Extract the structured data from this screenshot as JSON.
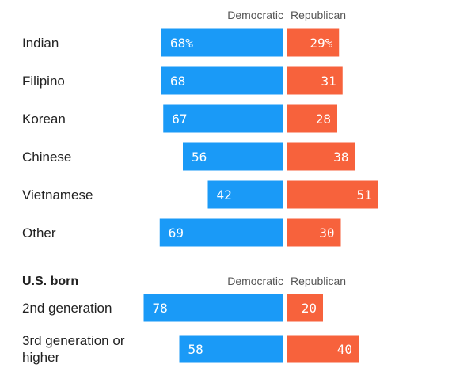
{
  "chart_data": {
    "type": "bar",
    "orientation": "horizontal-diverging",
    "series": [
      {
        "name": "Democratic",
        "color": "#1A9AF7"
      },
      {
        "name": "Republican",
        "color": "#F7623C"
      }
    ],
    "xlim": [
      0,
      100
    ],
    "groups": [
      {
        "title": "",
        "rows": [
          {
            "label": "Indian",
            "democratic": 68,
            "republican": 29,
            "dem_text": "68%",
            "rep_text": "29%"
          },
          {
            "label": "Filipino",
            "democratic": 68,
            "republican": 31,
            "dem_text": "68",
            "rep_text": "31"
          },
          {
            "label": "Korean",
            "democratic": 67,
            "republican": 28,
            "dem_text": "67",
            "rep_text": "28"
          },
          {
            "label": "Chinese",
            "democratic": 56,
            "republican": 38,
            "dem_text": "56",
            "rep_text": "38"
          },
          {
            "label": "Vietnamese",
            "democratic": 42,
            "republican": 51,
            "dem_text": "42",
            "rep_text": "51"
          },
          {
            "label": "Other",
            "democratic": 69,
            "republican": 30,
            "dem_text": "69",
            "rep_text": "30"
          }
        ]
      },
      {
        "title": "U.S. born",
        "rows": [
          {
            "label": "2nd generation",
            "democratic": 78,
            "republican": 20,
            "dem_text": "78",
            "rep_text": "20"
          },
          {
            "label": [
              "3rd generation or",
              "higher"
            ],
            "democratic": 58,
            "republican": 40,
            "dem_text": "58",
            "rep_text": "40"
          }
        ]
      }
    ]
  }
}
